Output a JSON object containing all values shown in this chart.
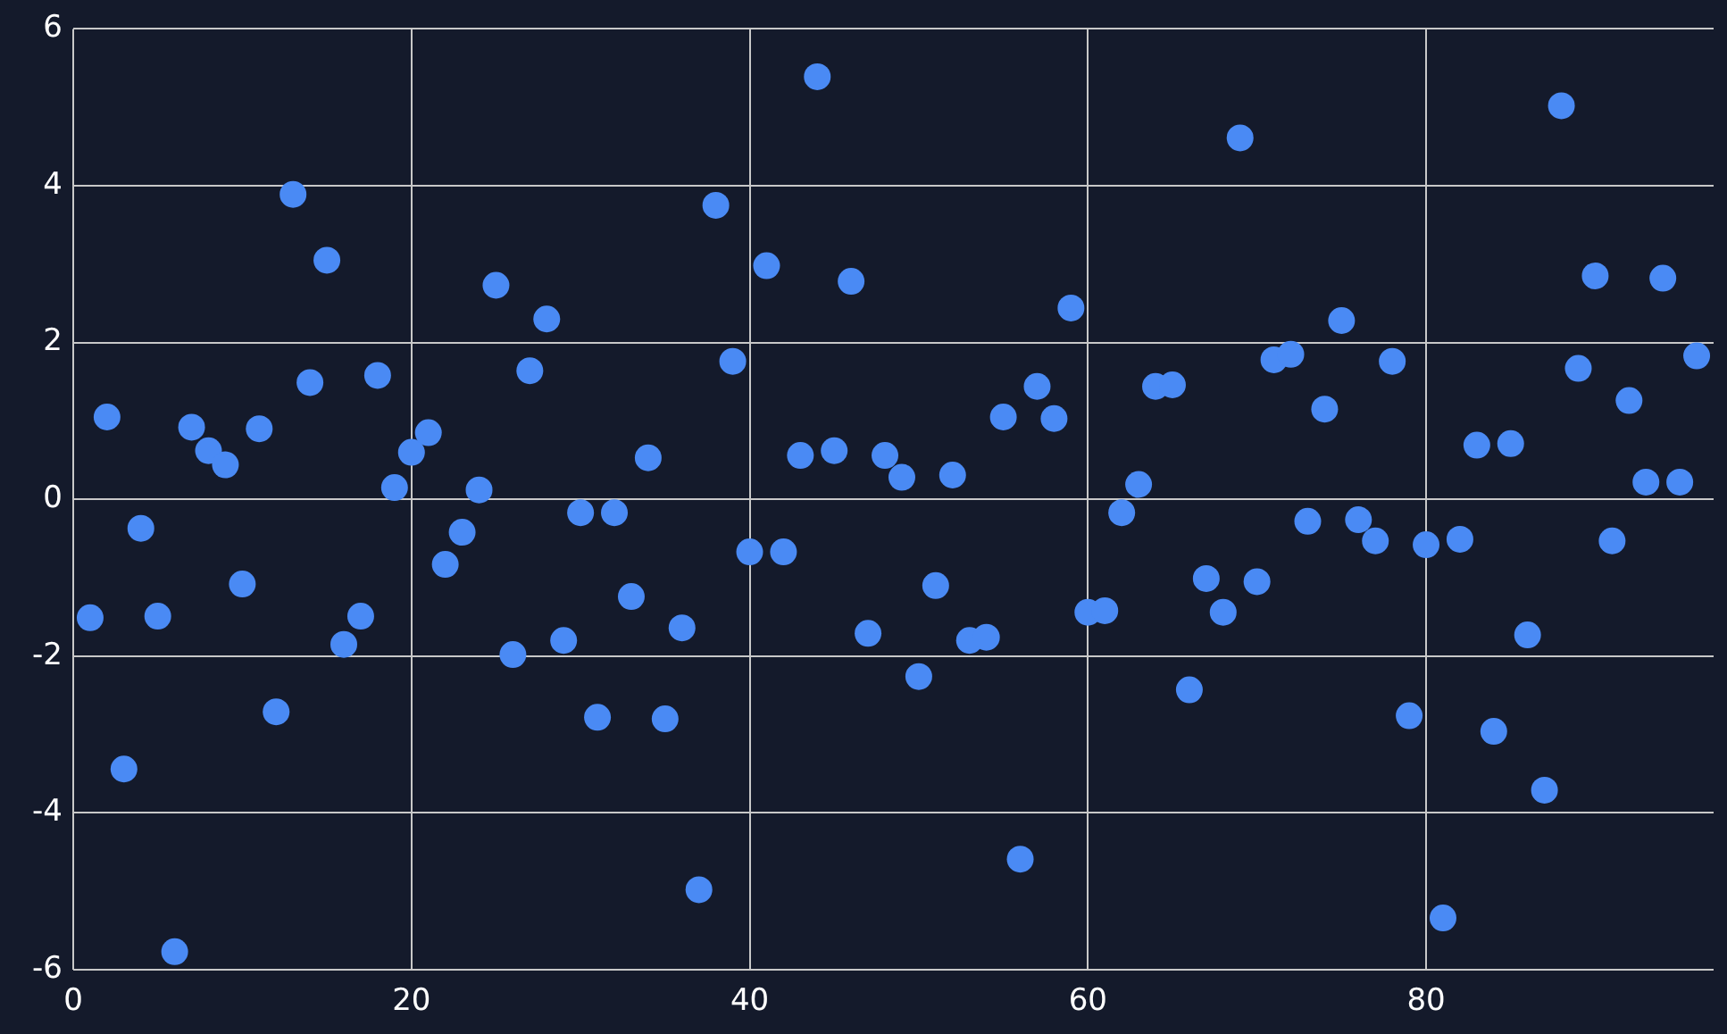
{
  "chart_data": {
    "type": "scatter",
    "x": [
      1,
      2,
      3,
      4,
      5,
      6,
      7,
      8,
      9,
      10,
      11,
      12,
      13,
      14,
      15,
      16,
      17,
      18,
      19,
      20,
      21,
      22,
      23,
      24,
      25,
      26,
      27,
      28,
      29,
      30,
      31,
      32,
      33,
      34,
      35,
      36,
      37,
      38,
      39,
      40,
      41,
      42,
      43,
      44,
      45,
      46,
      47,
      48,
      49,
      50,
      51,
      52,
      53,
      54,
      55,
      56,
      57,
      58,
      59,
      60,
      61,
      62,
      63,
      64,
      65,
      66,
      67,
      68,
      69,
      70,
      71,
      72,
      73,
      74,
      75,
      76,
      77,
      78,
      79,
      80,
      81,
      82,
      83,
      84,
      85,
      86,
      87,
      88,
      89,
      90,
      91,
      92,
      93,
      94,
      95,
      96
    ],
    "series": [
      {
        "color": "#4a8af4",
        "values": [
          -1.51,
          1.05,
          -3.44,
          -0.37,
          -1.49,
          -5.77,
          0.92,
          0.62,
          0.44,
          -1.08,
          0.9,
          -2.71,
          3.89,
          1.49,
          3.05,
          -1.85,
          -1.49,
          1.58,
          0.15,
          0.6,
          0.85,
          -0.83,
          -0.42,
          0.12,
          2.73,
          -1.98,
          1.64,
          2.3,
          -1.8,
          -0.17,
          -2.78,
          -0.17,
          -1.24,
          0.53,
          -2.8,
          -1.64,
          -4.98,
          3.75,
          1.76,
          -0.67,
          2.98,
          -0.67,
          0.56,
          5.39,
          0.62,
          2.78,
          -1.71,
          0.56,
          0.28,
          -2.26,
          -1.1,
          0.31,
          -1.8,
          -1.76,
          1.05,
          -4.59,
          1.44,
          1.03,
          2.44,
          -1.44,
          -1.42,
          -0.17,
          0.19,
          1.44,
          1.46,
          -2.43,
          -1.01,
          -1.44,
          4.61,
          -1.05,
          1.78,
          1.85,
          -0.28,
          1.15,
          2.28,
          -0.26,
          -0.53,
          1.76,
          -2.76,
          -0.58,
          -5.34,
          -0.51,
          0.69,
          -2.96,
          0.71,
          -1.73,
          -3.71,
          5.02,
          1.67,
          2.85,
          -0.53,
          1.26,
          0.22,
          2.82,
          0.22,
          1.83
        ]
      }
    ],
    "xlim": [
      0,
      97
    ],
    "xticks": [
      0,
      20,
      40,
      60,
      80
    ],
    "ylim": [
      -6,
      6
    ],
    "yticks": [
      -6,
      -4,
      -2,
      0,
      2,
      4,
      6
    ],
    "grid": true,
    "marker": "circle",
    "legend": false
  }
}
